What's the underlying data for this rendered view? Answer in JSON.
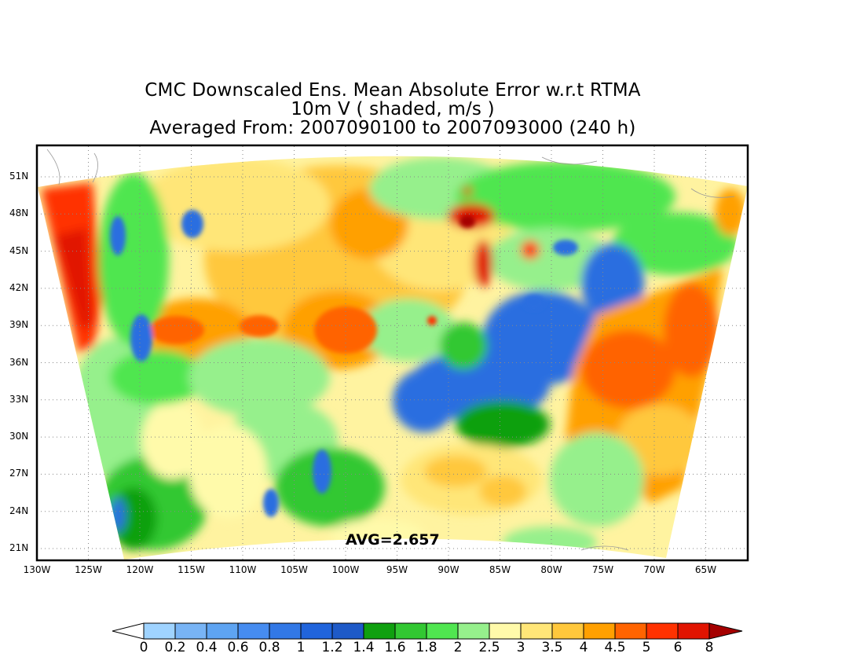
{
  "title": {
    "line1": "CMC Downscaled Ens. Mean Absolute Error w.r.t RTMA",
    "line2": "10m V ( shaded, m/s )",
    "line3": "Averaged From: 2007090100 to 2007093000 (240 h)"
  },
  "avg_label": "AVG=2.657",
  "lat_labels": [
    "51N",
    "48N",
    "45N",
    "42N",
    "39N",
    "36N",
    "33N",
    "30N",
    "27N",
    "24N",
    "21N"
  ],
  "lon_labels": [
    "130W",
    "125W",
    "120W",
    "115W",
    "110W",
    "105W",
    "100W",
    "95W",
    "90W",
    "85W",
    "80W",
    "75W",
    "70W",
    "65W"
  ],
  "colorbar": {
    "labels": [
      "0",
      "0.2",
      "0.4",
      "0.6",
      "0.8",
      "1",
      "1.2",
      "1.4",
      "1.6",
      "1.8",
      "2",
      "2.5",
      "3",
      "3.5",
      "4",
      "4.5",
      "5",
      "6",
      "8"
    ],
    "colors": [
      "#ffffff",
      "#9fd3ff",
      "#78b4f5",
      "#5ea4f2",
      "#468cf0",
      "#3278e6",
      "#2064dc",
      "#1e5ac8",
      "#0fa00f",
      "#32c832",
      "#50e650",
      "#96f08c",
      "#fffaaa",
      "#ffe678",
      "#ffc83c",
      "#ffa000",
      "#ff6400",
      "#ff3200",
      "#e11400",
      "#a50000"
    ]
  },
  "map_colors": {
    "blue": "#2a6ee0",
    "green_dark": "#1ea01e",
    "green": "#3cc83c",
    "green_light": "#96f08c",
    "yellow_light": "#fffaaa",
    "yellow": "#ffe678",
    "orange_light": "#ffc83c",
    "orange": "#ffa000",
    "orange_dark": "#ff6400",
    "red": "#ff3200",
    "red_dark": "#e11400"
  }
}
